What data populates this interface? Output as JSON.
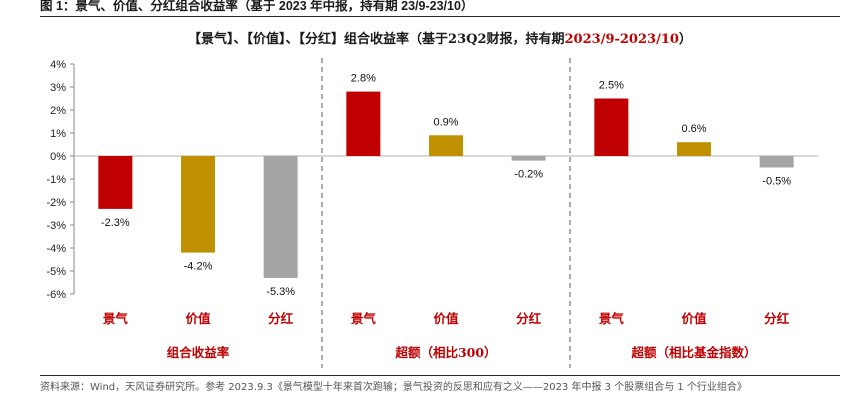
{
  "figure_title": "图 1：景气、价值、分红组合收益率（基于 2023 年中报，持有期 23/9-23/10）",
  "chart_title": {
    "main": "【景气】、【价值】、【分红】组合收益率（基于23Q2财报，持有期",
    "highlight": "2023/9-2023/10",
    "close": "）"
  },
  "source_text": "资料来源：Wind，天风证券研究所。参考 2023.9.3《景气模型十年来首次跑输；景气投资的反思和应有之义——2023 年中报 3 个股票组合与 1 个行业组合》",
  "chart_data": {
    "type": "bar",
    "title": "【景气】、【价值】、【分红】组合收益率（基于23Q2财报，持有期2023/9-2023/10）",
    "y_unit": "%",
    "ylim": [
      -6,
      4
    ],
    "y_ticks": [
      "4%",
      "3%",
      "2%",
      "1%",
      "0%",
      "-1%",
      "-2%",
      "-3%",
      "-4%",
      "-5%",
      "-6%"
    ],
    "grid": false,
    "groups": [
      {
        "name": "组合收益率",
        "bars": [
          {
            "category": "景气",
            "value": -2.3,
            "label": "-2.3%",
            "color": "#c00000"
          },
          {
            "category": "价值",
            "value": -4.2,
            "label": "-4.2%",
            "color": "#bf9000"
          },
          {
            "category": "分红",
            "value": -5.3,
            "label": "-5.3%",
            "color": "#a5a5a5"
          }
        ]
      },
      {
        "name": "超额（相比300）",
        "bars": [
          {
            "category": "景气",
            "value": 2.8,
            "label": "2.8%",
            "color": "#c00000"
          },
          {
            "category": "价值",
            "value": 0.9,
            "label": "0.9%",
            "color": "#bf9000"
          },
          {
            "category": "分红",
            "value": -0.2,
            "label": "-0.2%",
            "color": "#a5a5a5"
          }
        ]
      },
      {
        "name": "超额（相比基金指数）",
        "bars": [
          {
            "category": "景气",
            "value": 2.5,
            "label": "2.5%",
            "color": "#c00000"
          },
          {
            "category": "价值",
            "value": 0.6,
            "label": "0.6%",
            "color": "#bf9000"
          },
          {
            "category": "分红",
            "value": -0.5,
            "label": "-0.5%",
            "color": "#a5a5a5"
          }
        ]
      }
    ]
  }
}
